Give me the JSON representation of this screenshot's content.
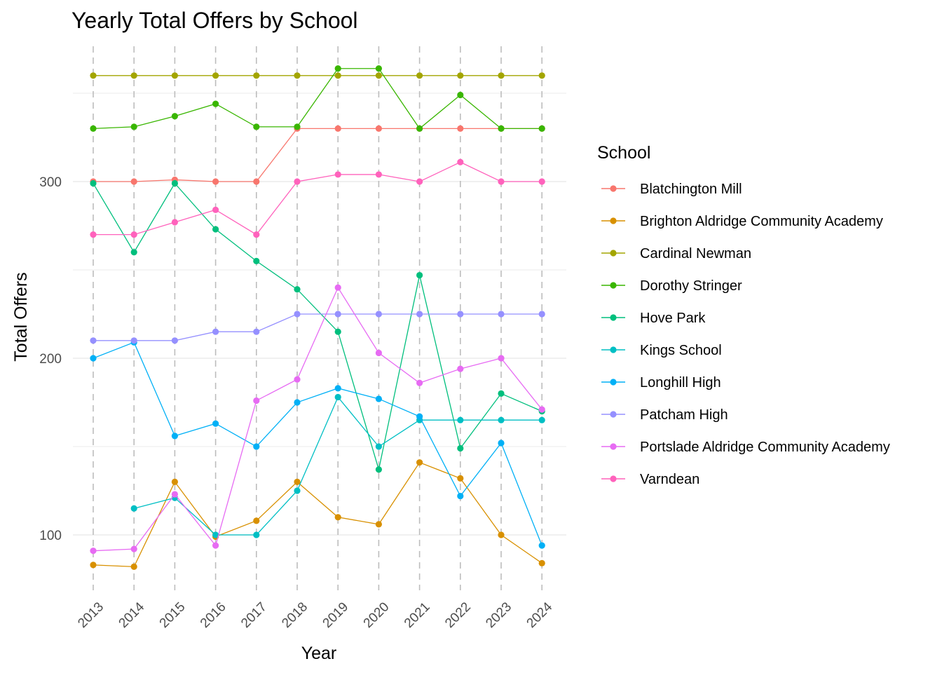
{
  "chart_data": {
    "type": "line",
    "title": "Yearly Total Offers by School",
    "xlabel": "Year",
    "ylabel": "Total Offers",
    "legend_title": "School",
    "legend_position": "right",
    "grid": true,
    "x": [
      "2013",
      "2014",
      "2015",
      "2016",
      "2017",
      "2018",
      "2019",
      "2020",
      "2021",
      "2022",
      "2023",
      "2024"
    ],
    "y_ticks": [
      100,
      200,
      300
    ],
    "ylim": [
      68,
      380
    ],
    "series": [
      {
        "name": "Blatchington Mill",
        "color": "#F8766D",
        "values": [
          300,
          300,
          301,
          300,
          300,
          330,
          330,
          330,
          330,
          330,
          330,
          330
        ]
      },
      {
        "name": "Brighton Aldridge Community Academy",
        "color": "#D89000",
        "values": [
          83,
          82,
          130,
          99,
          108,
          130,
          110,
          106,
          141,
          132,
          100,
          84
        ]
      },
      {
        "name": "Cardinal Newman",
        "color": "#A3A500",
        "values": [
          360,
          360,
          360,
          360,
          360,
          360,
          360,
          360,
          360,
          360,
          360,
          360
        ]
      },
      {
        "name": "Dorothy Stringer",
        "color": "#39B600",
        "values": [
          330,
          331,
          337,
          344,
          331,
          331,
          364,
          364,
          330,
          349,
          330,
          330
        ]
      },
      {
        "name": "Hove Park",
        "color": "#00BF7D",
        "values": [
          299,
          260,
          299,
          273,
          255,
          239,
          215,
          137,
          247,
          149,
          180,
          170
        ]
      },
      {
        "name": "Kings School",
        "color": "#00BFC4",
        "values": [
          null,
          115,
          121,
          100,
          100,
          125,
          178,
          150,
          165,
          165,
          165,
          165
        ]
      },
      {
        "name": "Longhill High",
        "color": "#00B0F6",
        "values": [
          200,
          209,
          156,
          163,
          150,
          175,
          183,
          177,
          167,
          122,
          152,
          94
        ]
      },
      {
        "name": "Patcham High",
        "color": "#9590FF",
        "values": [
          210,
          210,
          210,
          215,
          215,
          225,
          225,
          225,
          225,
          225,
          225,
          225
        ]
      },
      {
        "name": "Portslade Aldridge Community Academy",
        "color": "#E76BF3",
        "values": [
          91,
          92,
          123,
          94,
          176,
          188,
          240,
          203,
          186,
          194,
          200,
          171
        ]
      },
      {
        "name": "Varndean",
        "color": "#FF62BC",
        "values": [
          270,
          270,
          277,
          284,
          270,
          300,
          304,
          304,
          300,
          311,
          300,
          300
        ]
      }
    ]
  }
}
